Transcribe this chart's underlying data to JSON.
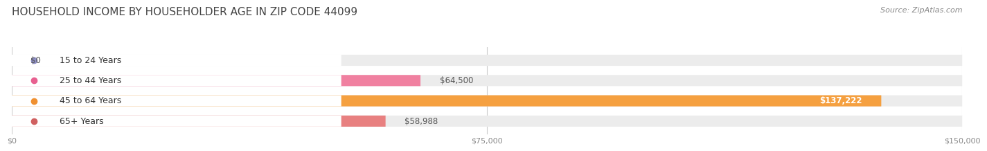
{
  "title": "HOUSEHOLD INCOME BY HOUSEHOLDER AGE IN ZIP CODE 44099",
  "source": "Source: ZipAtlas.com",
  "categories": [
    "15 to 24 Years",
    "25 to 44 Years",
    "45 to 64 Years",
    "65+ Years"
  ],
  "values": [
    0,
    64500,
    137222,
    58988
  ],
  "value_labels": [
    "$0",
    "$64,500",
    "$137,222",
    "$58,988"
  ],
  "bar_colors": [
    "#a8a8d8",
    "#f080a0",
    "#f5a040",
    "#e88080"
  ],
  "bar_bg_color": "#ececec",
  "label_dot_colors": [
    "#9090c8",
    "#e86090",
    "#f09030",
    "#d06060"
  ],
  "bar_height": 0.55,
  "xlim": [
    0,
    150000
  ],
  "xtick_values": [
    0,
    75000,
    150000
  ],
  "xtick_labels": [
    "$0",
    "$75,000",
    "$150,000"
  ],
  "title_fontsize": 11,
  "source_fontsize": 8,
  "label_fontsize": 9,
  "value_fontsize": 8.5,
  "tick_fontsize": 8,
  "background_color": "#ffffff",
  "inner_label_color": "#ffffff",
  "outer_label_color": "#555555"
}
